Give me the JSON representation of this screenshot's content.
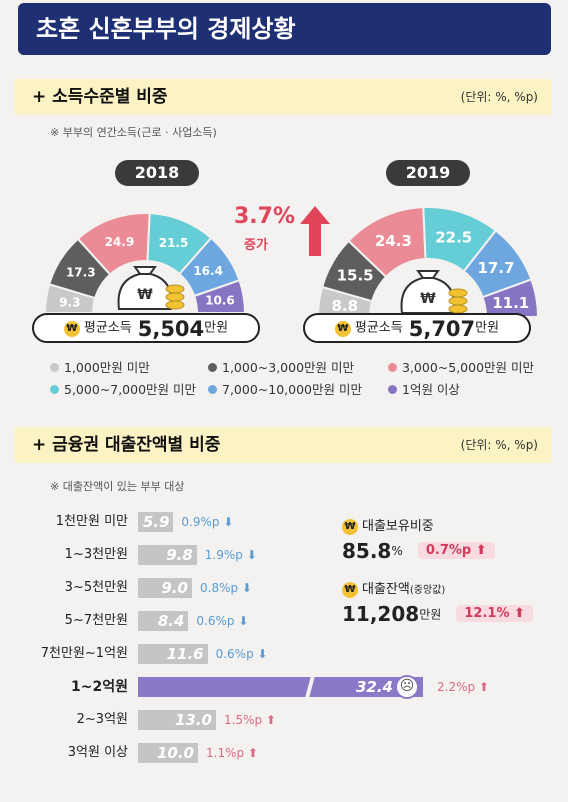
{
  "title": "초혼 신혼부부의 경제상황",
  "sections": {
    "income": {
      "title": "+ 소득수준별 비중",
      "unit": "(단위: %, %p)",
      "note": "※ 부부의 연간소득(근로 · 사업소득)"
    },
    "loan": {
      "title": "+ 금융권 대출잔액별 비중",
      "unit": "(단위: %, %p)",
      "note": "※ 대출잔액이 있는 부부 대상"
    }
  },
  "increase": {
    "pct": "3.7%",
    "label": "증가"
  },
  "chart_data": [
    {
      "type": "pie",
      "year": "2018",
      "categories": [
        "1,000만원 미만",
        "1,000~3,000만원 미만",
        "3,000~5,000만원 미만",
        "5,000~7,000만원 미만",
        "7,000~10,000만원 미만",
        "1억원 이상"
      ],
      "values": [
        9.3,
        17.3,
        24.9,
        21.5,
        16.4,
        10.6
      ],
      "labels": [
        "9.3",
        "17.3",
        "24.9",
        "21.5",
        "16.4",
        "10.6"
      ],
      "colors": [
        "#c9c9c9",
        "#5e5e5e",
        "#ea8b95",
        "#65cdd6",
        "#6ea7e0",
        "#8775c4"
      ],
      "avg": {
        "label": "평균소득",
        "value": "5,504",
        "unit": "만원"
      }
    },
    {
      "type": "pie",
      "year": "2019",
      "categories": [
        "1,000만원 미만",
        "1,000~3,000만원 미만",
        "3,000~5,000만원 미만",
        "5,000~7,000만원 미만",
        "7,000~10,000만원 미만",
        "1억원 이상"
      ],
      "values": [
        8.8,
        15.5,
        24.3,
        22.5,
        17.7,
        11.1
      ],
      "labels": [
        "8.8",
        "15.5",
        "24.3",
        "22.5",
        "17.7",
        "11.1"
      ],
      "colors": [
        "#c9c9c9",
        "#5e5e5e",
        "#ea8b95",
        "#65cdd6",
        "#6ea7e0",
        "#8775c4"
      ],
      "avg": {
        "label": "평균소득",
        "value": "5,707",
        "unit": "만원"
      }
    },
    {
      "type": "bar",
      "orientation": "horizontal",
      "categories": [
        "1천만원 미만",
        "1~3천만원",
        "3~5천만원",
        "5~7천만원",
        "7천만원~1억원",
        "1~2억원",
        "2~3억원",
        "3억원 이상"
      ],
      "values": [
        5.9,
        9.8,
        9.0,
        8.4,
        11.6,
        32.4,
        13.0,
        10.0
      ],
      "value_labels": [
        "5.9",
        "9.8",
        "9.0",
        "8.4",
        "11.6",
        "32.4",
        "13.0",
        "10.0"
      ],
      "changes": [
        "0.9%p",
        "1.9%p",
        "0.8%p",
        "0.6%p",
        "0.6%p",
        "2.2%p",
        "1.5%p",
        "1.1%p"
      ],
      "change_direction": [
        "down",
        "down",
        "down",
        "down",
        "down",
        "up",
        "up",
        "up"
      ],
      "highlight_index": 5,
      "colors": {
        "default": "#c5c5c5",
        "highlight": "#8b79c8",
        "down": "#5b9bd5",
        "up": "#d96a83"
      }
    }
  ],
  "legend": [
    {
      "label": "1,000만원 미만",
      "color": "#c9c9c9"
    },
    {
      "label": "1,000~3,000만원 미만",
      "color": "#5e5e5e"
    },
    {
      "label": "3,000~5,000만원 미만",
      "color": "#ea8b95"
    },
    {
      "label": "5,000~7,000만원 미만",
      "color": "#65cdd6"
    },
    {
      "label": "7,000~10,000만원 미만",
      "color": "#6ea7e0"
    },
    {
      "label": "1억원 이상",
      "color": "#8775c4"
    }
  ],
  "loan_stats": {
    "holding": {
      "label": "대출보유비중",
      "value": "85.8",
      "unit": "%",
      "change": "0.7%p"
    },
    "balance": {
      "label": "대출잔액",
      "label_small": "(중앙값)",
      "value": "11,208",
      "unit": "만원",
      "change": "12.1%"
    }
  },
  "icons": {
    "coin": "₩"
  }
}
